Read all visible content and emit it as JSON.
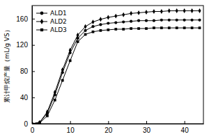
{
  "chart_data": {
    "type": "line",
    "y_label": "累计甲烷产量（mL/g VS）",
    "x": [
      0,
      2,
      4,
      6,
      8,
      10,
      12,
      14,
      16,
      18,
      20,
      22,
      24,
      26,
      28,
      30,
      32,
      34,
      36,
      38,
      40,
      42,
      44
    ],
    "series": [
      {
        "name": "ALD1",
        "color": "#000000",
        "marker": "circle",
        "line_style": "solid",
        "values": [
          0,
          2,
          16,
          44,
          78,
          108,
          130,
          142,
          148,
          151,
          153,
          154,
          155,
          156,
          157,
          157,
          157,
          158,
          158,
          158,
          158,
          158,
          158
        ]
      },
      {
        "name": "ALD2",
        "color": "#000000",
        "marker": "diamond",
        "line_style": "solid",
        "values": [
          0,
          2,
          18,
          48,
          82,
          112,
          135,
          148,
          155,
          159,
          162,
          164,
          166,
          168,
          169,
          170,
          171,
          171,
          172,
          172,
          172,
          172,
          172
        ]
      },
      {
        "name": "ALD3",
        "color": "#000000",
        "marker": "square",
        "line_style": "solid",
        "values": [
          0,
          1,
          12,
          36,
          66,
          96,
          125,
          136,
          140,
          142,
          143,
          144,
          144,
          145,
          145,
          145,
          146,
          146,
          146,
          146,
          146,
          146,
          146
        ]
      }
    ],
    "xlim": [
      0,
      45
    ],
    "xticks": [
      0,
      10,
      20,
      30,
      40
    ],
    "ylim": [
      0,
      180
    ],
    "yticks": [
      0,
      40,
      80,
      120,
      160
    ],
    "legend": "top-left",
    "grid": false
  }
}
